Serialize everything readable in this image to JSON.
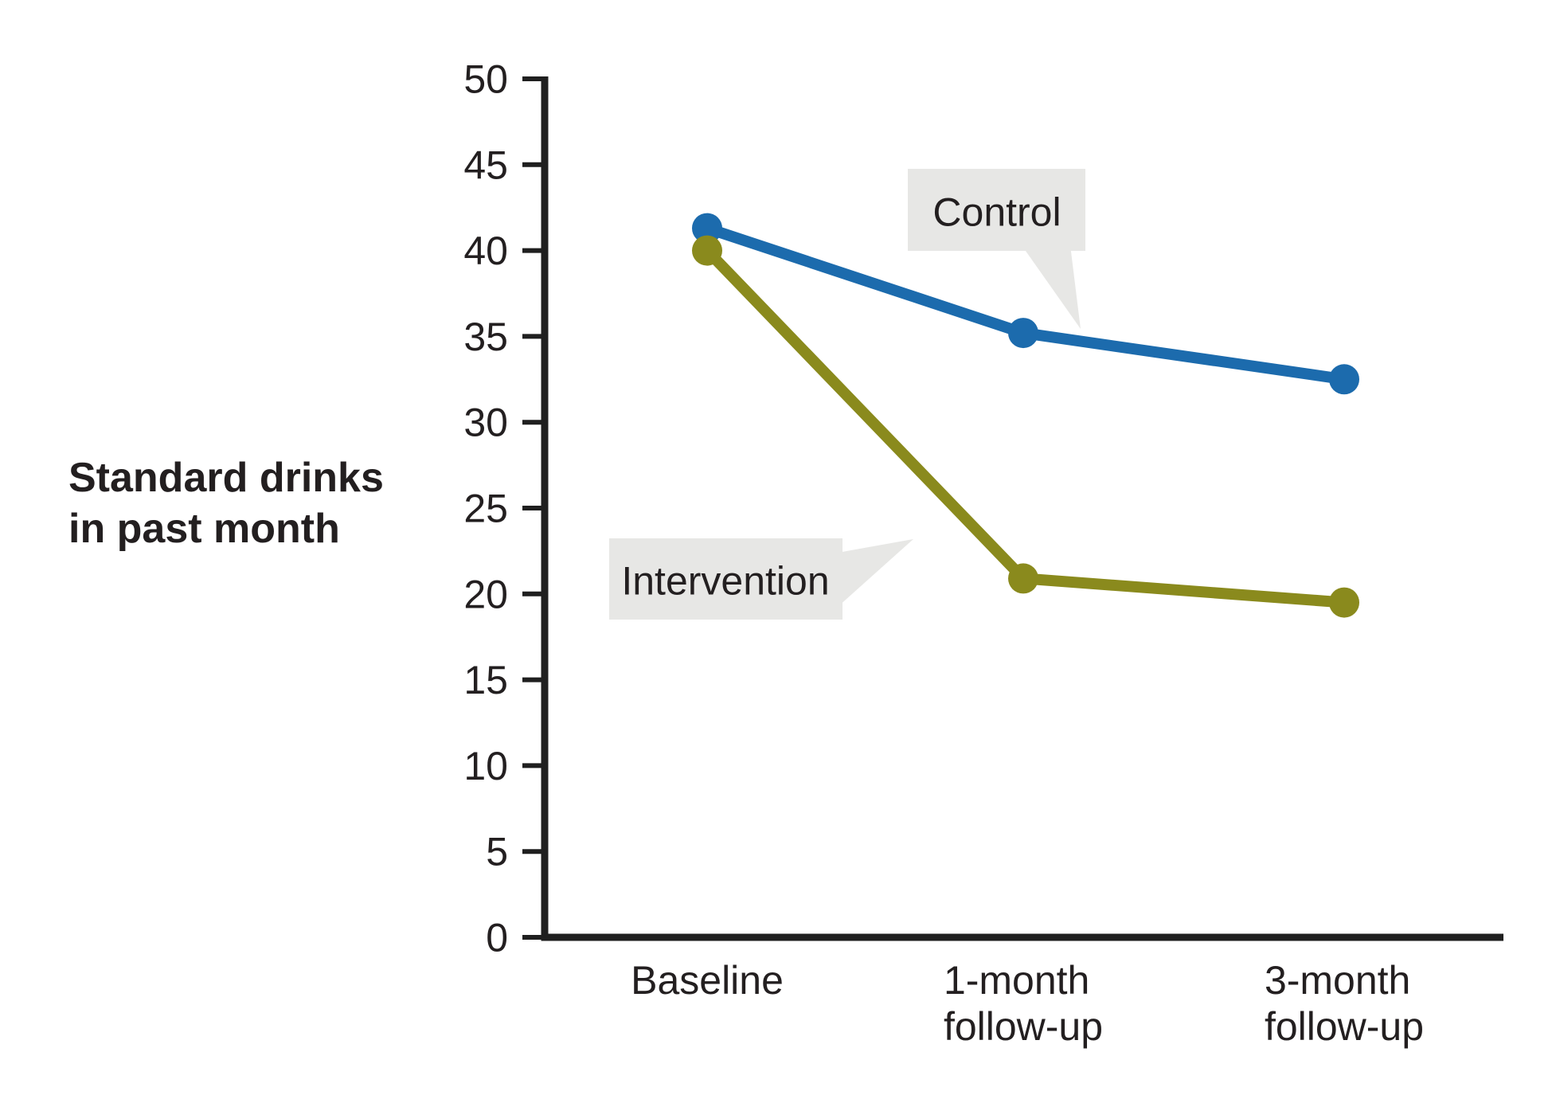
{
  "chart_data": {
    "type": "line",
    "title": "",
    "ylabel": "Standard drinks in past month",
    "ylabel_display": "Standard drinks\nin past month",
    "xlabel": "",
    "categories": [
      "Baseline",
      "1-month\nfollow-up",
      "3-month\nfollow-up"
    ],
    "ylim": [
      0,
      50
    ],
    "y_ticks": [
      50,
      45,
      40,
      35,
      30,
      25,
      20,
      15,
      10,
      5,
      0
    ],
    "grid": false,
    "legend_position": "inline-callouts",
    "series": [
      {
        "name": "Control",
        "color": "#1c6bad",
        "values": [
          41.3,
          35.2,
          32.5
        ]
      },
      {
        "name": "Intervention",
        "color": "#8a8a1d",
        "values": [
          40.0,
          20.9,
          19.5
        ]
      }
    ],
    "annotations": [
      {
        "label": "Control",
        "series": "Control",
        "point_index": 1,
        "style": "speech-bubble"
      },
      {
        "label": "Intervention",
        "series": "Intervention",
        "point_index": 1,
        "style": "speech-bubble"
      }
    ],
    "colors": {
      "axis": "#1f1f1f",
      "text": "#231f20",
      "callout_bg": "#e7e7e5",
      "control": "#1c6bad",
      "intervention": "#8a8a1d"
    }
  }
}
